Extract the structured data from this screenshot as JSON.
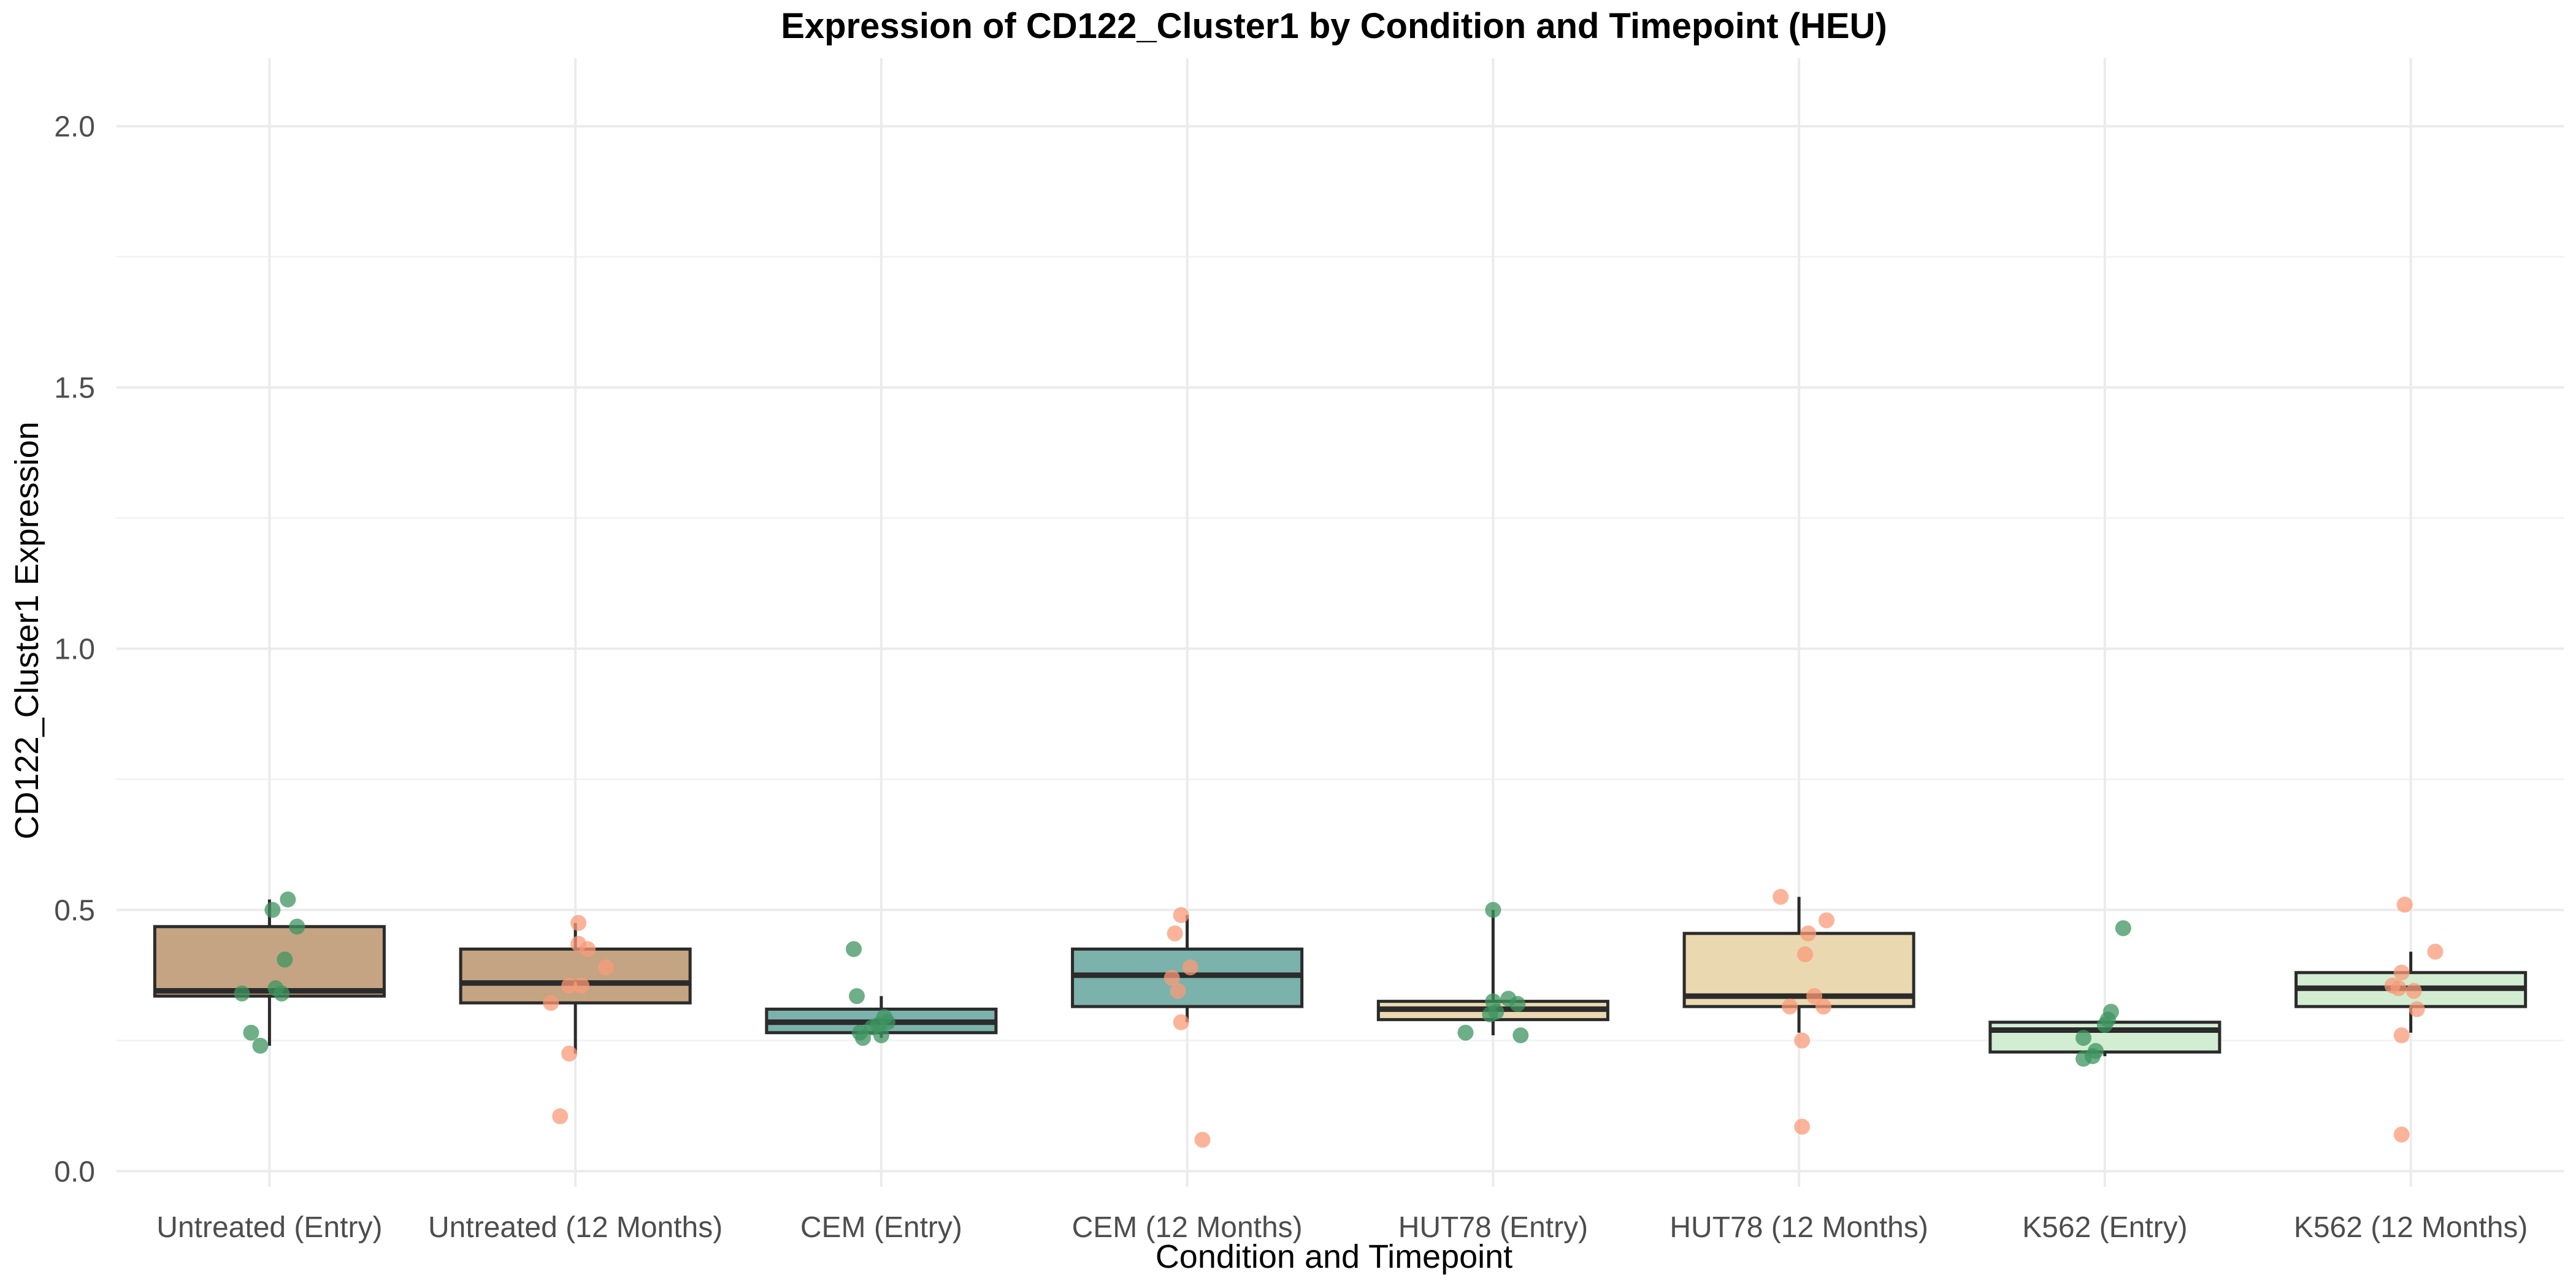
{
  "chart_data": {
    "type": "box",
    "title": "Expression of CD122_Cluster1 by Condition and Timepoint (HEU)",
    "xlabel": "Condition and Timepoint",
    "ylabel": "CD122_Cluster1 Expression",
    "ylim": [
      -0.03,
      2.13
    ],
    "y_ticks": [
      0.0,
      0.5,
      1.0,
      1.5,
      2.0
    ],
    "y_tick_labels": [
      "0.0",
      "0.5",
      "1.0",
      "1.5",
      "2.0"
    ],
    "grid": true,
    "legend": "none",
    "point_colors": {
      "Entry": "#3d9460",
      "12 Months": "#fa9b78"
    },
    "categories": [
      {
        "label": "Untreated (Entry)",
        "timepoint": "Entry",
        "fill": "#c4a482",
        "q1": 0.335,
        "median": 0.345,
        "q3": 0.468,
        "whisker_low": 0.24,
        "whisker_high": 0.52,
        "points": [
          [
            -0.09,
            0.34
          ],
          [
            -0.06,
            0.265
          ],
          [
            -0.03,
            0.24
          ],
          [
            0.01,
            0.5
          ],
          [
            0.02,
            0.35
          ],
          [
            0.04,
            0.34
          ],
          [
            0.05,
            0.405
          ],
          [
            0.06,
            0.52
          ],
          [
            0.09,
            0.468
          ]
        ]
      },
      {
        "label": "Untreated (12 Months)",
        "timepoint": "12 Months",
        "fill": "#c4a482",
        "q1": 0.322,
        "median": 0.36,
        "q3": 0.425,
        "whisker_low": 0.225,
        "whisker_high": 0.475,
        "points": [
          [
            -0.08,
            0.322
          ],
          [
            -0.05,
            0.105
          ],
          [
            -0.02,
            0.355
          ],
          [
            -0.02,
            0.225
          ],
          [
            0.01,
            0.475
          ],
          [
            0.01,
            0.435
          ],
          [
            0.02,
            0.355
          ],
          [
            0.04,
            0.425
          ],
          [
            0.1,
            0.39
          ]
        ]
      },
      {
        "label": "CEM (Entry)",
        "timepoint": "Entry",
        "fill": "#7bb2ab",
        "q1": 0.265,
        "median": 0.285,
        "q3": 0.31,
        "whisker_low": 0.255,
        "whisker_high": 0.335,
        "points": [
          [
            -0.09,
            0.425
          ],
          [
            -0.08,
            0.335
          ],
          [
            -0.07,
            0.265
          ],
          [
            -0.06,
            0.255
          ],
          [
            -0.03,
            0.275
          ],
          [
            0.0,
            0.26
          ],
          [
            0.01,
            0.295
          ],
          [
            0.02,
            0.285
          ],
          [
            -0.01,
            0.28
          ]
        ]
      },
      {
        "label": "CEM (12 Months)",
        "timepoint": "12 Months",
        "fill": "#7bb2ab",
        "q1": 0.315,
        "median": 0.375,
        "q3": 0.425,
        "whisker_low": 0.285,
        "whisker_high": 0.49,
        "points": [
          [
            -0.05,
            0.37
          ],
          [
            -0.04,
            0.455
          ],
          [
            -0.03,
            0.345
          ],
          [
            -0.02,
            0.285
          ],
          [
            -0.02,
            0.49
          ],
          [
            0.01,
            0.39
          ],
          [
            0.05,
            0.06
          ]
        ]
      },
      {
        "label": "HUT78 (Entry)",
        "timepoint": "Entry",
        "fill": "#ead8b0",
        "q1": 0.29,
        "median": 0.31,
        "q3": 0.325,
        "whisker_low": 0.26,
        "whisker_high": 0.5,
        "points": [
          [
            -0.09,
            0.265
          ],
          [
            0.0,
            0.5
          ],
          [
            0.0,
            0.325
          ],
          [
            -0.01,
            0.3
          ],
          [
            0.01,
            0.305
          ],
          [
            0.05,
            0.33
          ],
          [
            0.08,
            0.32
          ],
          [
            0.09,
            0.26
          ]
        ]
      },
      {
        "label": "HUT78 (12 Months)",
        "timepoint": "12 Months",
        "fill": "#ead8b0",
        "q1": 0.315,
        "median": 0.335,
        "q3": 0.455,
        "whisker_low": 0.265,
        "whisker_high": 0.525,
        "points": [
          [
            -0.06,
            0.525
          ],
          [
            -0.03,
            0.315
          ],
          [
            0.01,
            0.085
          ],
          [
            0.01,
            0.25
          ],
          [
            0.02,
            0.415
          ],
          [
            0.03,
            0.455
          ],
          [
            0.05,
            0.335
          ],
          [
            0.08,
            0.315
          ],
          [
            0.09,
            0.48
          ]
        ]
      },
      {
        "label": "K562 (Entry)",
        "timepoint": "Entry",
        "fill": "#d3edd2",
        "q1": 0.228,
        "median": 0.27,
        "q3": 0.285,
        "whisker_low": 0.22,
        "whisker_high": 0.285,
        "points": [
          [
            -0.07,
            0.215
          ],
          [
            -0.07,
            0.255
          ],
          [
            -0.04,
            0.22
          ],
          [
            -0.03,
            0.23
          ],
          [
            0.0,
            0.28
          ],
          [
            0.01,
            0.29
          ],
          [
            0.02,
            0.305
          ],
          [
            0.06,
            0.465
          ]
        ]
      },
      {
        "label": "K562 (12 Months)",
        "timepoint": "12 Months",
        "fill": "#d3edd2",
        "q1": 0.315,
        "median": 0.35,
        "q3": 0.38,
        "whisker_low": 0.265,
        "whisker_high": 0.42,
        "points": [
          [
            -0.06,
            0.355
          ],
          [
            -0.04,
            0.35
          ],
          [
            -0.03,
            0.38
          ],
          [
            -0.03,
            0.26
          ],
          [
            -0.03,
            0.07
          ],
          [
            -0.02,
            0.51
          ],
          [
            0.01,
            0.345
          ],
          [
            0.02,
            0.31
          ],
          [
            0.08,
            0.42
          ]
        ]
      }
    ]
  }
}
